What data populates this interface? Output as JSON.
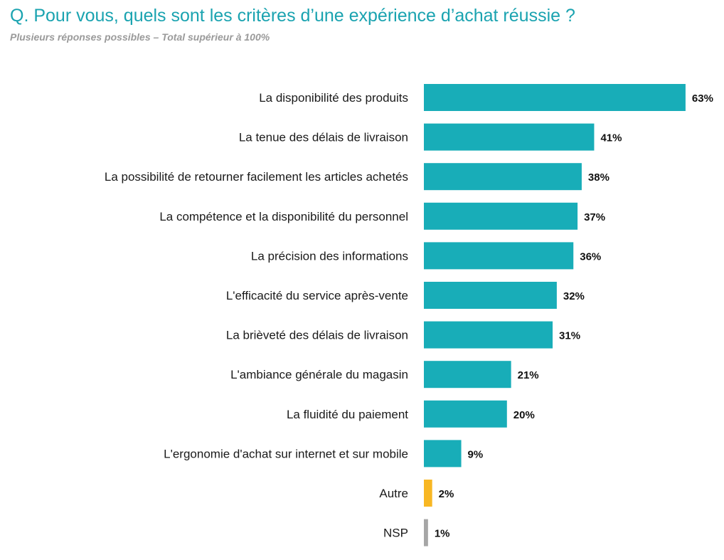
{
  "header": {
    "title": "Q. Pour vous, quels sont les critères d’une expérience d’achat réussie ?",
    "subtitle": "Plusieurs réponses possibles – Total supérieur à 100%"
  },
  "colors": {
    "title": "#1aa3b0",
    "subtitle": "#9a9a9a"
  },
  "chart_data": {
    "type": "bar",
    "orientation": "horizontal",
    "title": "Q. Pour vous, quels sont les critères d’une expérience d’achat réussie ?",
    "subtitle": "Plusieurs réponses possibles – Total supérieur à 100%",
    "xlabel": "",
    "ylabel": "",
    "xlim": [
      0,
      63
    ],
    "grid": false,
    "legend": "none",
    "categories": [
      "La disponibilité des produits",
      "La tenue des délais de livraison",
      "La possibilité de retourner facilement les articles achetés",
      "La compétence et la disponibilité du personnel",
      "La précision des informations",
      "L'efficacité du service après-vente",
      "La brièveté des délais de livraison",
      "L'ambiance générale du magasin",
      "La fluidité du paiement",
      "L'ergonomie d'achat sur internet et sur mobile",
      "Autre",
      "NSP"
    ],
    "values": [
      63,
      41,
      38,
      37,
      36,
      32,
      31,
      21,
      20,
      9,
      2,
      1
    ],
    "value_labels": [
      "63%",
      "41%",
      "38%",
      "37%",
      "36%",
      "32%",
      "31%",
      "21%",
      "20%",
      "9%",
      "2%",
      "1%"
    ],
    "bar_colors": [
      "#18adb8",
      "#18adb8",
      "#18adb8",
      "#18adb8",
      "#18adb8",
      "#18adb8",
      "#18adb8",
      "#18adb8",
      "#18adb8",
      "#18adb8",
      "#f8b723",
      "#a6a6a6"
    ]
  }
}
